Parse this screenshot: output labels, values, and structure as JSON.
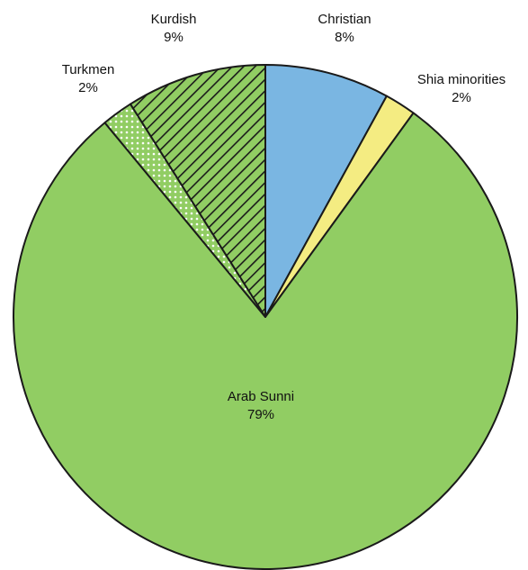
{
  "chart_data": {
    "type": "pie",
    "slices": [
      {
        "label": "Christian",
        "value": 8,
        "value_label": "8%",
        "color": "#7ab6e2",
        "pattern": "solid"
      },
      {
        "label": "Shia minorities",
        "value": 2,
        "value_label": "2%",
        "color": "#f4ec82",
        "pattern": "solid"
      },
      {
        "label": "Arab Sunni",
        "value": 79,
        "value_label": "79%",
        "color": "#91cd63",
        "pattern": "solid"
      },
      {
        "label": "Turkmen",
        "value": 2,
        "value_label": "2%",
        "color": "#91cd63",
        "pattern": "dotted"
      },
      {
        "label": "Kurdish",
        "value": 9,
        "value_label": "9%",
        "color": "#91cd63",
        "pattern": "hatched"
      }
    ],
    "start_angle_deg": 0,
    "direction": "clockwise",
    "outline_color": "#1a1a1a"
  }
}
